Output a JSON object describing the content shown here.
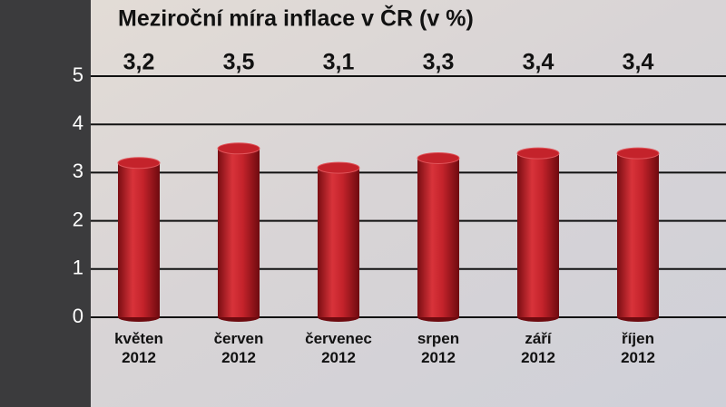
{
  "chart_data": {
    "type": "bar",
    "title": "Meziroční míra inflace v ČR (v %)",
    "categories": [
      "květen 2012",
      "červen 2012",
      "červenec 2012",
      "srpen 2012",
      "září 2012",
      "říjen 2012"
    ],
    "values": [
      3.2,
      3.5,
      3.1,
      3.3,
      3.4,
      3.4
    ],
    "value_labels": [
      "3,2",
      "3,5",
      "3,1",
      "3,3",
      "3,4",
      "3,4"
    ],
    "color": "#c4232b",
    "ylim": [
      0,
      5
    ],
    "yticks": [
      0,
      1,
      2,
      3,
      4,
      5
    ],
    "grid": true
  }
}
